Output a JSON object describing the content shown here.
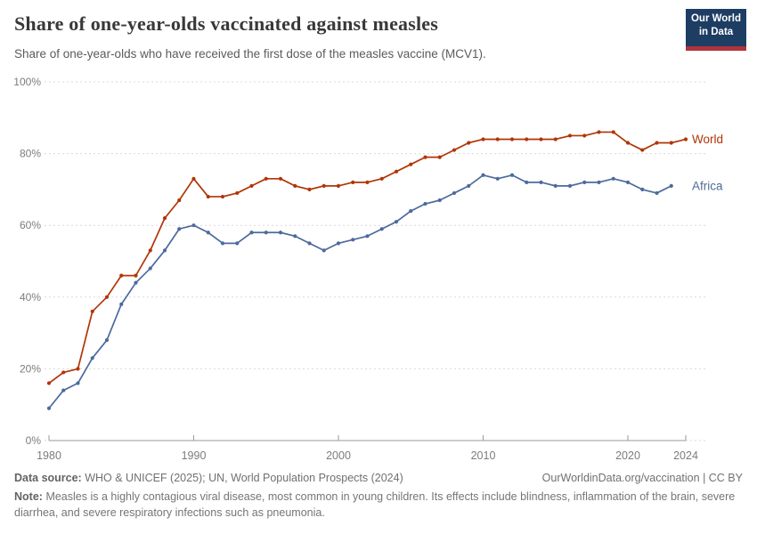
{
  "header": {
    "title": "Share of one-year-olds vaccinated against measles",
    "subtitle": "Share of one-year-olds who have received the first dose of the measles vaccine (MCV1).",
    "logo_line1": "Our World",
    "logo_line2": "in Data",
    "logo_colors": {
      "background": "#1d3d63",
      "stripe": "#b0343c"
    }
  },
  "chart_data": {
    "type": "line",
    "title": "Share of one-year-olds vaccinated against measles",
    "xlabel": "",
    "ylabel": "",
    "xlim": [
      1980,
      2024
    ],
    "ylim": [
      0,
      100
    ],
    "grid": "horizontal-dashed",
    "legend_position": "right-of-line-ends",
    "x_ticks": [
      1980,
      1990,
      2000,
      2010,
      2020,
      2024
    ],
    "y_ticks": [
      "0%",
      "20%",
      "40%",
      "60%",
      "80%",
      "100%"
    ],
    "marker": "dot",
    "series": [
      {
        "name": "World",
        "color": "#b13507",
        "start_year": 1980,
        "end_year": 2024,
        "values": [
          16,
          19,
          20,
          36,
          40,
          46,
          46,
          53,
          62,
          67,
          73,
          68,
          68,
          69,
          71,
          73,
          73,
          71,
          70,
          71,
          71,
          72,
          72,
          73,
          75,
          77,
          79,
          79,
          81,
          83,
          84,
          84,
          84,
          84,
          84,
          84,
          85,
          85,
          86,
          86,
          83,
          81,
          83,
          83,
          84
        ]
      },
      {
        "name": "Africa",
        "color": "#4c6a9c",
        "start_year": 1980,
        "end_year": 2023,
        "values": [
          9,
          14,
          16,
          23,
          28,
          38,
          44,
          48,
          53,
          59,
          60,
          58,
          55,
          55,
          58,
          58,
          58,
          57,
          55,
          53,
          55,
          56,
          57,
          59,
          61,
          64,
          66,
          67,
          69,
          71,
          74,
          73,
          74,
          72,
          72,
          71,
          71,
          72,
          72,
          73,
          72,
          70,
          69,
          71
        ]
      }
    ],
    "axis_colors": {
      "grid": "#d9d9d9",
      "axis_line": "#9a9a9a",
      "tick_text": "#7c7c7c"
    }
  },
  "footer": {
    "data_source_label": "Data source:",
    "data_source_text": "WHO & UNICEF (2025); UN, World Population Prospects (2024)",
    "attribution": "OurWorldinData.org/vaccination | CC BY",
    "note_label": "Note:",
    "note_text": "Measles is a highly contagious viral disease, most common in young children. Its effects include blindness, inflammation of the brain, severe diarrhea, and severe respiratory infections such as pneumonia."
  }
}
